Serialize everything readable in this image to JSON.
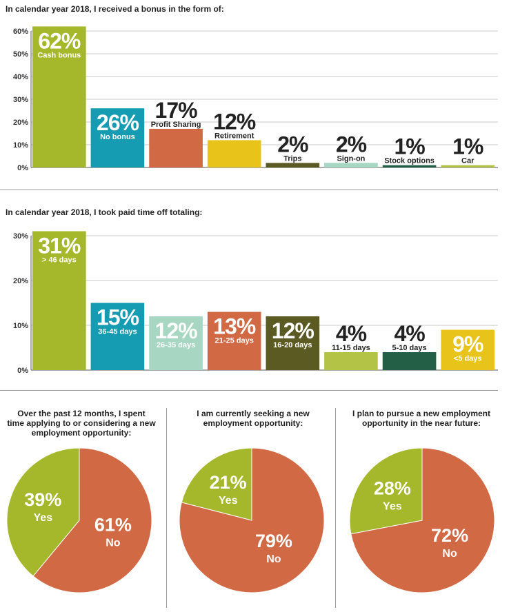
{
  "chart_data": [
    {
      "type": "bar",
      "title": "In calendar year 2018, I received a bonus in the form of:",
      "categories": [
        "Cash bonus",
        "No bonus",
        "Profit Sharing",
        "Retirement",
        "Trips",
        "Sign-on",
        "Stock options",
        "Car"
      ],
      "values": [
        62,
        26,
        17,
        12,
        2,
        2,
        1,
        1
      ],
      "value_labels": [
        "62%",
        "26%",
        "17%",
        "12%",
        "2%",
        "2%",
        "1%",
        "1%"
      ],
      "colors": [
        "#a5b72b",
        "#159bb2",
        "#d16a44",
        "#e8c41b",
        "#5a5a22",
        "#a7d6c2",
        "#235e46",
        "#b3c345"
      ],
      "ylim": [
        0,
        60
      ],
      "yticks": [
        "0%",
        "10%",
        "20%",
        "30%",
        "40%",
        "50%",
        "60%"
      ],
      "grid": true
    },
    {
      "type": "bar",
      "title": "In calendar year 2018, I took paid time off totaling:",
      "categories": [
        "> 46 days",
        "36-45 days",
        "26-35 days",
        "21-25 days",
        "16-20 days",
        "11-15 days",
        "5-10 days",
        "<5 days"
      ],
      "values": [
        31,
        15,
        12,
        13,
        12,
        4,
        4,
        9
      ],
      "value_labels": [
        "31%",
        "15%",
        "12%",
        "13%",
        "12%",
        "4%",
        "4%",
        "9%"
      ],
      "colors": [
        "#a5b72b",
        "#159bb2",
        "#a7d6c2",
        "#d16a44",
        "#5a5a22",
        "#b3c345",
        "#235e46",
        "#e8c41b"
      ],
      "ylim": [
        0,
        30
      ],
      "yticks": [
        "0%",
        "10%",
        "20%",
        "30%"
      ],
      "grid": true
    },
    {
      "type": "pie",
      "title": "Over the past 12 months, I spent time applying to or considering a new employment opportunity:",
      "labels": [
        "Yes",
        "No"
      ],
      "values": [
        39,
        61
      ],
      "value_labels": [
        "39%",
        "61%"
      ],
      "colors": [
        "#a5b72b",
        "#d16a44"
      ]
    },
    {
      "type": "pie",
      "title": "I am currently seeking a new employment opportunity:",
      "labels": [
        "Yes",
        "No"
      ],
      "values": [
        21,
        79
      ],
      "value_labels": [
        "21%",
        "79%"
      ],
      "colors": [
        "#a5b72b",
        "#d16a44"
      ]
    },
    {
      "type": "pie",
      "title": "I plan to pursue a new employment opportunity in the near future:",
      "labels": [
        "Yes",
        "No"
      ],
      "values": [
        28,
        72
      ],
      "value_labels": [
        "28%",
        "72%"
      ],
      "colors": [
        "#a5b72b",
        "#d16a44"
      ]
    }
  ],
  "pie_titles": [
    [
      "Over the past 12 months, I spent",
      "time applying to or considering a new",
      "employment opportunity:"
    ],
    [
      "I am currently seeking a new",
      "employment opportunity:"
    ],
    [
      "I plan to pursue a new employment",
      "opportunity in the near future:"
    ]
  ]
}
